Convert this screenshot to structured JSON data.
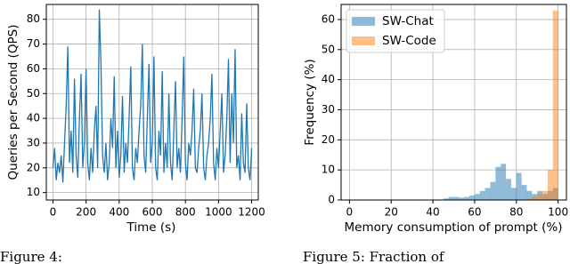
{
  "chart_data": [
    {
      "type": "line",
      "xlabel": "Time (s)",
      "ylabel": "Queries per Second (QPS)",
      "x": [
        0,
        10,
        20,
        30,
        40,
        50,
        60,
        70,
        80,
        90,
        100,
        110,
        120,
        130,
        140,
        150,
        160,
        170,
        180,
        190,
        200,
        210,
        220,
        230,
        240,
        250,
        260,
        270,
        280,
        290,
        300,
        310,
        320,
        330,
        340,
        350,
        360,
        370,
        380,
        390,
        400,
        410,
        420,
        430,
        440,
        450,
        460,
        470,
        480,
        490,
        500,
        510,
        520,
        530,
        540,
        550,
        560,
        570,
        580,
        590,
        600,
        610,
        620,
        630,
        640,
        650,
        660,
        670,
        680,
        690,
        700,
        710,
        720,
        730,
        740,
        750,
        760,
        770,
        780,
        790,
        800,
        810,
        820,
        830,
        840,
        850,
        860,
        870,
        880,
        890,
        900,
        910,
        920,
        930,
        940,
        950,
        960,
        970,
        980,
        990,
        1000,
        1010,
        1020,
        1030,
        1040,
        1050,
        1060,
        1070,
        1080,
        1090,
        1100,
        1110,
        1120,
        1130,
        1140,
        1150,
        1160,
        1170,
        1180,
        1190,
        1200
      ],
      "series": [
        {
          "name": "QPS",
          "color": "#1f77b4",
          "values": [
            20,
            28,
            15,
            22,
            18,
            25,
            14,
            30,
            45,
            69,
            22,
            35,
            18,
            56,
            25,
            16,
            40,
            58,
            20,
            30,
            60,
            22,
            15,
            28,
            18,
            35,
            45,
            20,
            84,
            62,
            25,
            18,
            30,
            15,
            22,
            40,
            28,
            57,
            20,
            35,
            16,
            25,
            49,
            18,
            30,
            22,
            40,
            61,
            20,
            15,
            28,
            22,
            35,
            45,
            70,
            25,
            18,
            40,
            62,
            22,
            30,
            65,
            20,
            15,
            35,
            25,
            59,
            18,
            30,
            20,
            50,
            22,
            15,
            35,
            55,
            20,
            28,
            18,
            40,
            65,
            22,
            15,
            30,
            25,
            35,
            52,
            20,
            18,
            28,
            35,
            50,
            20,
            15,
            25,
            30,
            40,
            58,
            22,
            15,
            28,
            20,
            35,
            50,
            18,
            25,
            40,
            64,
            22,
            50,
            30,
            68,
            20,
            25,
            15,
            42,
            22,
            18,
            46,
            20,
            15,
            28
          ]
        }
      ],
      "xlim": [
        -40,
        1240
      ],
      "ylim": [
        7,
        86
      ],
      "xticks": [
        0,
        200,
        400,
        600,
        800,
        1000,
        1200
      ],
      "yticks": [
        10,
        20,
        30,
        40,
        50,
        60,
        70,
        80
      ],
      "grid": true
    },
    {
      "type": "histogram",
      "xlabel": "Memory consumption of prompt (%)",
      "ylabel": "Frequency (%)",
      "bins": [
        0,
        2.5,
        5,
        7.5,
        10,
        12.5,
        15,
        17.5,
        20,
        22.5,
        25,
        27.5,
        30,
        32.5,
        35,
        37.5,
        40,
        42.5,
        45,
        47.5,
        50,
        52.5,
        55,
        57.5,
        60,
        62.5,
        65,
        67.5,
        70,
        72.5,
        75,
        77.5,
        80,
        82.5,
        85,
        87.5,
        90,
        92.5,
        95,
        97.5,
        100
      ],
      "series": [
        {
          "name": "SW-Chat",
          "color": "#1f77b4",
          "values": [
            0,
            0,
            0,
            0,
            0,
            0,
            0,
            0,
            0,
            0,
            0,
            0,
            0,
            0,
            0,
            0,
            0,
            0,
            0.5,
            1,
            1,
            0.8,
            1,
            1.5,
            2,
            3,
            4,
            6,
            11,
            12,
            7,
            4,
            9,
            5,
            3,
            2,
            3,
            2,
            3,
            4
          ]
        },
        {
          "name": "SW-Code",
          "color": "#ff7f0e",
          "values": [
            0,
            0,
            0,
            0,
            0,
            0,
            0,
            0,
            0,
            0,
            0,
            0,
            0,
            0,
            0,
            0,
            0,
            0,
            0,
            0,
            0,
            0,
            0,
            0,
            0,
            0,
            0,
            0,
            0,
            0,
            0,
            0,
            0,
            0,
            0.5,
            1,
            2,
            3,
            10,
            63
          ]
        }
      ],
      "xlim": [
        -4,
        104
      ],
      "ylim": [
        0,
        65
      ],
      "xticks": [
        0,
        20,
        40,
        60,
        80,
        100
      ],
      "yticks": [
        0,
        10,
        20,
        30,
        40,
        50,
        60
      ],
      "grid": true,
      "legend": "upper-left",
      "opacity": 0.5
    }
  ],
  "captions": [
    "Figure 4:",
    "Figure 5: Fraction of"
  ]
}
